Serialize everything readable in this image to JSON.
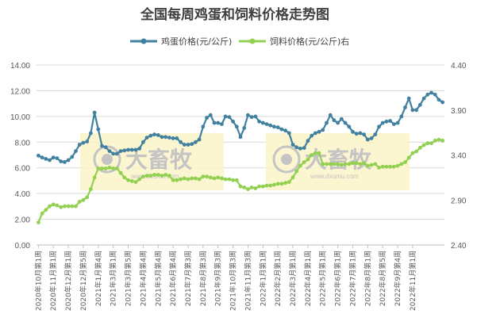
{
  "chart_data": {
    "type": "line",
    "title": "全国每周鸡蛋和饲料价格走势图",
    "legend_position": "top",
    "grid": true,
    "x_tick_labels": [
      "2020年10月第1周",
      "2020年11月第1周",
      "2020年12月第1周",
      "2020年12月第5周",
      "2021年1月第4周",
      "2021年3月第1周",
      "2021年3月第5周",
      "2021年4月第4周",
      "2021年5月第4周",
      "2021年6月第4周",
      "2021年7月第3周",
      "2021年8月第3周",
      "2021年9月第3周",
      "2021年10月第3周",
      "2021年11月第3周",
      "2022年1月第1周",
      "2022年2月第1周",
      "2022年3月第1周",
      "2022年4月第1周",
      "2022年5月第1周",
      "2022年6月第1周",
      "2022年7月第1周",
      "2022年8月第1周",
      "2022年8月第5周",
      "2022年9月第4周",
      "2022年11月第1周"
    ],
    "x_tick_every": 4,
    "left_axis": {
      "ylim": [
        0,
        14
      ],
      "ticks": [
        "0.00",
        "2.00",
        "4.00",
        "6.00",
        "8.00",
        "10.00",
        "12.00",
        "14.00"
      ]
    },
    "right_axis": {
      "ylim": [
        2.4,
        4.4
      ],
      "ticks": [
        "2.40",
        "2.90",
        "3.40",
        "3.90",
        "4.40"
      ]
    },
    "series": [
      {
        "name": "鸡蛋价格(元/公斤)",
        "axis": "left",
        "color": "#41809f",
        "values": [
          6.95,
          6.8,
          6.7,
          6.6,
          6.8,
          6.75,
          6.5,
          6.45,
          6.6,
          6.85,
          7.3,
          7.8,
          7.95,
          8.05,
          8.7,
          10.3,
          9.0,
          7.7,
          7.6,
          7.3,
          7.1,
          7.1,
          7.3,
          7.35,
          7.4,
          7.4,
          7.4,
          7.5,
          8.0,
          8.35,
          8.5,
          8.6,
          8.55,
          8.4,
          8.4,
          8.35,
          8.3,
          8.3,
          8.0,
          7.8,
          7.8,
          7.85,
          8.0,
          8.2,
          9.2,
          9.9,
          10.1,
          9.5,
          9.5,
          9.4,
          10.0,
          9.95,
          9.6,
          9.2,
          8.4,
          9.1,
          10.1,
          9.95,
          10.0,
          9.6,
          9.5,
          9.4,
          9.3,
          9.2,
          9.15,
          9.0,
          8.9,
          8.7,
          7.8,
          7.6,
          7.5,
          7.55,
          8.1,
          8.5,
          8.7,
          8.8,
          8.95,
          9.5,
          10.1,
          9.7,
          9.5,
          9.8,
          9.5,
          9.2,
          8.8,
          8.65,
          8.7,
          8.6,
          8.2,
          8.3,
          8.6,
          9.2,
          9.5,
          9.6,
          9.65,
          9.4,
          9.5,
          10.0,
          10.7,
          11.4,
          10.5,
          10.5,
          10.9,
          11.4,
          11.7,
          11.85,
          11.7,
          11.3,
          11.1
        ]
      },
      {
        "name": "饲料价格(元/公斤)右",
        "axis": "right",
        "color": "#92d050",
        "values": [
          2.65,
          2.75,
          2.79,
          2.83,
          2.85,
          2.84,
          2.82,
          2.83,
          2.83,
          2.83,
          2.83,
          2.88,
          2.9,
          2.93,
          3.02,
          3.15,
          3.25,
          3.25,
          3.25,
          3.26,
          3.25,
          3.25,
          3.2,
          3.15,
          3.12,
          3.11,
          3.1,
          3.13,
          3.16,
          3.17,
          3.17,
          3.18,
          3.18,
          3.17,
          3.18,
          3.17,
          3.12,
          3.12,
          3.13,
          3.14,
          3.13,
          3.14,
          3.14,
          3.13,
          3.16,
          3.16,
          3.15,
          3.14,
          3.15,
          3.14,
          3.13,
          3.13,
          3.12,
          3.12,
          3.05,
          3.04,
          3.02,
          3.04,
          3.03,
          3.05,
          3.05,
          3.06,
          3.06,
          3.07,
          3.08,
          3.08,
          3.09,
          3.1,
          3.15,
          3.22,
          3.28,
          3.32,
          3.35,
          3.4,
          3.42,
          3.42,
          3.3,
          3.3,
          3.3,
          3.3,
          3.3,
          3.29,
          3.3,
          3.3,
          3.31,
          3.31,
          3.3,
          3.31,
          3.28,
          3.29,
          3.3,
          3.26,
          3.27,
          3.27,
          3.27,
          3.27,
          3.28,
          3.3,
          3.32,
          3.37,
          3.42,
          3.44,
          3.48,
          3.51,
          3.53,
          3.53,
          3.56,
          3.57,
          3.56
        ]
      }
    ]
  },
  "watermark": {
    "brand": "大畜牧",
    "url": "www.dxumu.com"
  }
}
